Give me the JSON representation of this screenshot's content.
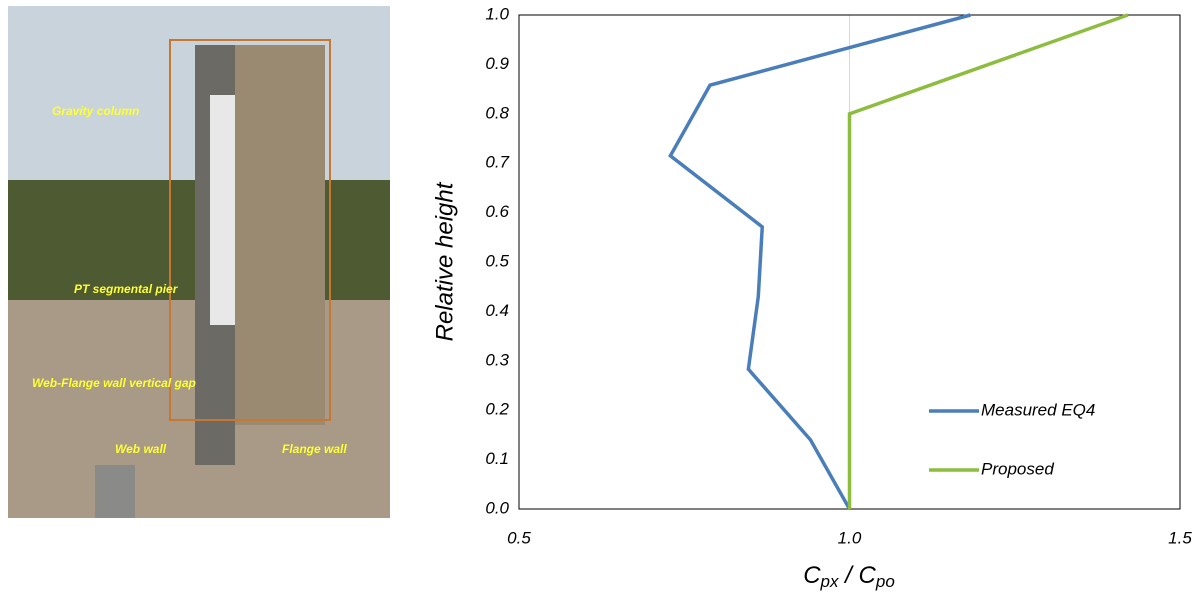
{
  "photo": {
    "labels": [
      "Gravity column",
      "PT segmental pier",
      "Web-Flange wall vertical gap",
      "Web wall",
      "Flange wall"
    ]
  },
  "chart_data": {
    "type": "line",
    "ylabel": "Relative height",
    "xlabel": [
      {
        "text": "C"
      },
      {
        "text": "px",
        "sub": true
      },
      {
        "text": " / C"
      },
      {
        "text": "po",
        "sub": true
      }
    ],
    "xlim": [
      0.5,
      1.5
    ],
    "xticks": [
      {
        "value": 0.5,
        "label": "0.5"
      },
      {
        "value": 1.0,
        "label": "1.0"
      },
      {
        "value": 1.5,
        "label": "1.5"
      }
    ],
    "ylim": [
      0,
      1
    ],
    "yticks": [
      {
        "value": 0,
        "label": "0.0"
      },
      0.1,
      0.2,
      0.3,
      0.4,
      0.5,
      0.6,
      0.7,
      0.8,
      0.9,
      {
        "value": 1,
        "label": "1.0"
      }
    ],
    "grid": true,
    "legend": "lower right",
    "series": [
      {
        "name": "Measured EQ4",
        "color": "#4a7ebb",
        "x": [
          1.0,
          0.941,
          0.847,
          0.862,
          0.868,
          0.729,
          0.789,
          1.183
        ],
        "values": [
          0,
          0.14,
          0.283,
          0.43,
          0.571,
          0.715,
          0.858,
          1.0
        ]
      },
      {
        "name": "Proposed",
        "color": "#8cbd3f",
        "x": [
          1.0,
          1.0,
          1.421
        ],
        "values": [
          0,
          0.8,
          1.0
        ]
      }
    ]
  }
}
